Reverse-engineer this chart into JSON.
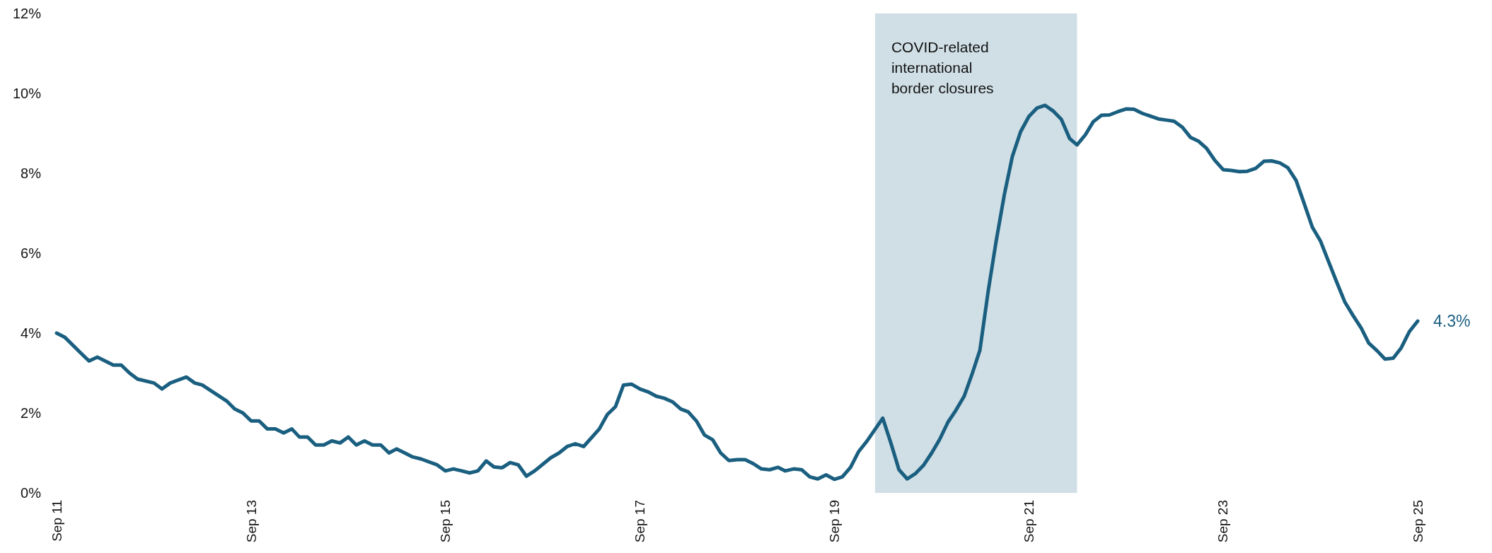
{
  "chart_data": {
    "type": "line",
    "x": [
      "2011-09",
      "2011-10",
      "2011-12",
      "2012-01",
      "2012-02",
      "2012-04",
      "2012-05",
      "2012-06",
      "2012-07",
      "2012-09",
      "2012-10",
      "2012-11",
      "2013-01",
      "2013-02",
      "2013-03",
      "2013-06",
      "2013-07",
      "2013-08",
      "2013-09",
      "2013-10",
      "2013-11",
      "2013-12",
      "2014-01",
      "2014-02",
      "2014-03",
      "2014-04",
      "2014-05",
      "2014-06",
      "2014-07",
      "2014-08",
      "2014-09",
      "2014-10",
      "2014-11",
      "2014-12",
      "2015-01",
      "2015-02",
      "2015-03",
      "2015-04",
      "2015-05",
      "2015-06",
      "2015-08",
      "2015-09",
      "2015-10",
      "2015-11",
      "2015-12",
      "2016-01",
      "2016-02",
      "2016-03",
      "2016-04",
      "2016-05",
      "2016-06",
      "2016-07",
      "2016-08",
      "2016-10",
      "2016-11",
      "2016-12",
      "2017-01",
      "2017-02",
      "2017-04",
      "2017-05",
      "2017-06",
      "2017-07",
      "2017-08",
      "2017-09",
      "2017-10",
      "2017-11",
      "2017-12",
      "2018-01",
      "2018-02",
      "2018-03",
      "2018-04",
      "2018-05",
      "2018-06",
      "2018-07",
      "2018-08",
      "2018-09",
      "2018-10",
      "2018-11",
      "2018-12",
      "2019-01",
      "2019-02",
      "2019-03",
      "2019-04",
      "2019-05",
      "2019-06",
      "2019-07",
      "2019-08",
      "2019-09",
      "2019-10",
      "2019-11",
      "2019-12",
      "2020-01",
      "2020-03",
      "2020-04",
      "2020-05",
      "2020-06",
      "2020-07",
      "2020-08",
      "2020-09",
      "2020-10",
      "2020-11",
      "2020-12",
      "2021-01",
      "2021-02",
      "2021-03",
      "2021-04",
      "2021-05",
      "2021-06",
      "2021-07",
      "2021-08",
      "2021-09",
      "2021-10",
      "2021-11",
      "2021-12",
      "2022-01",
      "2022-02",
      "2022-03",
      "2022-04",
      "2022-05",
      "2022-06",
      "2022-07",
      "2022-08",
      "2022-09",
      "2022-10",
      "2022-11",
      "2022-12",
      "2023-01",
      "2023-02",
      "2023-03",
      "2023-04",
      "2023-05",
      "2023-06",
      "2023-07",
      "2023-08",
      "2023-09",
      "2023-10",
      "2023-11",
      "2023-12",
      "2024-01",
      "2024-02",
      "2024-03",
      "2024-04",
      "2024-05",
      "2024-06",
      "2024-07",
      "2024-08",
      "2024-09",
      "2024-10",
      "2024-11",
      "2024-12",
      "2025-01",
      "2025-02",
      "2025-03",
      "2025-04",
      "2025-05",
      "2025-06",
      "2025-07",
      "2025-08",
      "2025-09"
    ],
    "series": [
      {
        "color": "#1a5f80",
        "values": [
          4.0,
          3.9,
          3.5,
          3.3,
          3.4,
          3.2,
          3.2,
          3.0,
          2.85,
          2.75,
          2.6,
          2.75,
          2.9,
          2.75,
          2.7,
          2.3,
          2.1,
          2.0,
          1.8,
          1.8,
          1.6,
          1.6,
          1.5,
          1.6,
          1.4,
          1.4,
          1.2,
          1.2,
          1.3,
          1.25,
          1.4,
          1.2,
          1.3,
          1.2,
          1.2,
          1.0,
          1.1,
          1.0,
          0.9,
          0.85,
          0.7,
          0.55,
          0.6,
          0.55,
          0.5,
          0.55,
          0.8,
          0.65,
          0.63,
          0.76,
          0.7,
          0.42,
          0.55,
          0.88,
          1.0,
          1.16,
          1.23,
          1.16,
          1.6,
          1.96,
          2.16,
          2.7,
          2.72,
          2.6,
          2.53,
          2.42,
          2.37,
          2.28,
          2.1,
          2.03,
          1.8,
          1.45,
          1.33,
          1.0,
          0.81,
          0.83,
          0.83,
          0.73,
          0.6,
          0.58,
          0.64,
          0.55,
          0.6,
          0.58,
          0.4,
          0.35,
          0.45,
          0.34,
          0.4,
          0.64,
          1.03,
          1.29,
          1.87,
          1.24,
          0.58,
          0.35,
          0.48,
          0.69,
          1.0,
          1.34,
          1.77,
          2.07,
          2.42,
          3.0,
          3.57,
          5.04,
          6.3,
          7.47,
          8.42,
          9.04,
          9.42,
          9.63,
          9.7,
          9.56,
          9.35,
          8.87,
          8.71,
          8.96,
          9.29,
          9.45,
          9.46,
          9.54,
          9.61,
          9.6,
          9.5,
          9.43,
          9.36,
          9.33,
          9.3,
          9.15,
          8.9,
          8.8,
          8.62,
          8.32,
          8.09,
          8.07,
          8.04,
          8.05,
          8.12,
          8.3,
          8.31,
          8.26,
          8.14,
          7.82,
          7.25,
          6.65,
          6.3,
          5.79,
          5.27,
          4.78,
          4.44,
          4.12,
          3.75,
          3.56,
          3.35,
          3.37,
          3.63,
          4.04,
          4.3
        ]
      }
    ],
    "xlim": [
      "2011-09",
      "2025-09"
    ],
    "xticks": [
      {
        "value": "2011-09",
        "label": "Sep 11"
      },
      {
        "value": "2013-09",
        "label": "Sep 13"
      },
      {
        "value": "2015-09",
        "label": "Sep 15"
      },
      {
        "value": "2017-09",
        "label": "Sep 17"
      },
      {
        "value": "2019-09",
        "label": "Sep 19"
      },
      {
        "value": "2021-09",
        "label": "Sep 21"
      },
      {
        "value": "2023-09",
        "label": "Sep 23"
      },
      {
        "value": "2025-09",
        "label": "Sep 25"
      }
    ],
    "ylim": [
      0,
      12
    ],
    "yticks": [
      {
        "value": 0,
        "label": "0%"
      },
      {
        "value": 2,
        "label": "2%"
      },
      {
        "value": 4,
        "label": "4%"
      },
      {
        "value": 6,
        "label": "6%"
      },
      {
        "value": 8,
        "label": "8%"
      },
      {
        "value": 10,
        "label": "10%"
      },
      {
        "value": 12,
        "label": "12%"
      }
    ],
    "bands": [
      {
        "axis": "x",
        "from": "2020-02",
        "to": "2022-03",
        "label": "COVID-related international border closures",
        "color": "#d0dfe6"
      }
    ],
    "annotations": [
      {
        "text": "4.3%",
        "x": "2025-09",
        "y": 4.3
      }
    ],
    "grid": false,
    "marker": "none",
    "line_style": "solid"
  }
}
